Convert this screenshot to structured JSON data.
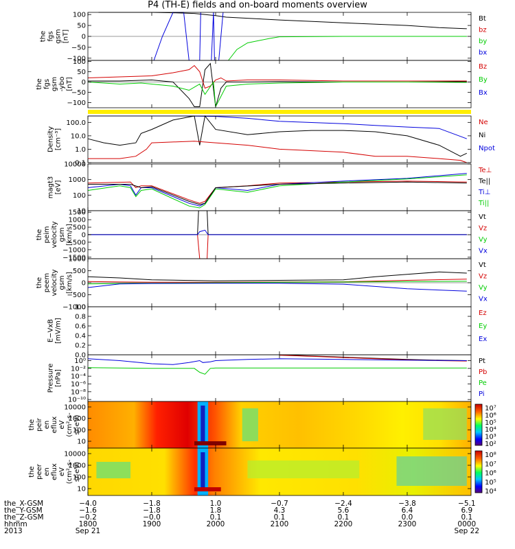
{
  "title": "P4 (TH-E) fields and on-board moments overview",
  "chart_data": [
    {
      "type": "line",
      "ylabel": [
        "the",
        "fgs",
        "gsm",
        "[nT]"
      ],
      "ylim": [
        -110,
        110
      ],
      "yticks": [
        "100",
        "50",
        "0",
        "−50",
        "−100"
      ],
      "ytick_values": [
        100,
        50,
        0,
        -50,
        -100
      ],
      "legend": [
        {
          "label": "Bt",
          "color": "#000000"
        },
        {
          "label": "bz",
          "color": "#d40000"
        },
        {
          "label": "by",
          "color": "#00cc00"
        },
        {
          "label": "bx",
          "color": "#0000dd"
        }
      ],
      "series": [
        {
          "color": "#000000",
          "x": [
            1810,
            1830,
            1840,
            1845,
            1850,
            1855,
            1900,
            1920,
            1940,
            2000,
            2010,
            2100,
            2200,
            2300,
            2330,
            2356
          ],
          "y": [
            110,
            110,
            110,
            110,
            110,
            110,
            110,
            108,
            105,
            95,
            88,
            75,
            62,
            50,
            40,
            35
          ]
        },
        {
          "color": "#00cc00",
          "x": [
            2012,
            2020,
            2030,
            2050,
            2100,
            2200,
            2300,
            2356
          ],
          "y": [
            -110,
            -60,
            -30,
            -10,
            -2,
            0,
            0,
            0
          ]
        },
        {
          "color": "#0000dd",
          "x": [
            1902,
            1910,
            1920,
            1930,
            1935,
            1945,
            1946
          ],
          "y": [
            -110,
            0,
            110,
            110,
            -110,
            -110,
            110
          ]
        },
        {
          "color": "#0000dd",
          "x": [
            1956,
            1958,
            1959,
            2003,
            2007
          ],
          "y": [
            -110,
            110,
            -110,
            -110,
            110
          ]
        }
      ]
    },
    {
      "type": "line",
      "ylabel": [
        "the",
        "fgs",
        "gsm",
        "-ybo",
        "[nT]"
      ],
      "ylim": [
        -125,
        105
      ],
      "yticks": [
        "100",
        "50",
        "0",
        "−50",
        "−100"
      ],
      "ytick_values": [
        100,
        50,
        0,
        -50,
        -100
      ],
      "legend": [
        {
          "label": "Bz",
          "color": "#d40000"
        },
        {
          "label": "By",
          "color": "#00cc00"
        },
        {
          "label": "Bx",
          "color": "#0000dd"
        }
      ],
      "series": [
        {
          "color": "#000000",
          "x": [
            1800,
            1830,
            1900,
            1920,
            1935,
            1940,
            1945,
            1950,
            1955,
            2000,
            2005,
            2010,
            2030,
            2100,
            2200,
            2300,
            2356
          ],
          "y": [
            5,
            5,
            10,
            0,
            -80,
            -120,
            -120,
            60,
            90,
            -120,
            -30,
            0,
            0,
            2,
            0,
            0,
            2
          ]
        },
        {
          "color": "#d40000",
          "x": [
            1800,
            1830,
            1900,
            1920,
            1935,
            1940,
            1945,
            1950,
            1955,
            2000,
            2005,
            2010,
            2030,
            2100,
            2200,
            2300,
            2356
          ],
          "y": [
            20,
            25,
            30,
            45,
            60,
            80,
            50,
            -30,
            -20,
            10,
            20,
            5,
            10,
            10,
            5,
            5,
            5
          ]
        },
        {
          "color": "#00cc00",
          "x": [
            1800,
            1830,
            1850,
            1900,
            1920,
            1935,
            1945,
            1950,
            1958,
            2000,
            2010,
            2030,
            2100,
            2200,
            2300,
            2356
          ],
          "y": [
            0,
            -10,
            -5,
            -10,
            -20,
            -40,
            -10,
            -60,
            0,
            -120,
            -20,
            -10,
            -5,
            0,
            0,
            -2
          ]
        }
      ]
    },
    {
      "type": "line",
      "ylabel": [
        "Density",
        "[cm⁻³]"
      ],
      "ylim": [
        0.1,
        300
      ],
      "yscale": "log",
      "yticks": [
        "100.0",
        "10.0",
        "1.0",
        "0.1"
      ],
      "ytick_values": [
        100,
        10,
        1,
        0.1
      ],
      "legend": [
        {
          "label": "Ne",
          "color": "#d40000"
        },
        {
          "label": "Ni",
          "color": "#000000"
        },
        {
          "label": "Npot",
          "color": "#0000dd"
        }
      ],
      "series": [
        {
          "color": "#0000dd",
          "x": [
            1800,
            1830,
            1900,
            1930,
            2000,
            2030,
            2100,
            2200,
            2230,
            2300,
            2330,
            2356
          ],
          "y": [
            300,
            300,
            300,
            300,
            280,
            200,
            120,
            80,
            60,
            45,
            35,
            6
          ]
        },
        {
          "color": "#000000",
          "x": [
            1800,
            1815,
            1830,
            1845,
            1850,
            1900,
            1920,
            1940,
            1945,
            1950,
            2000,
            2030,
            2100,
            2130,
            2200,
            2230,
            2300,
            2330,
            2350,
            2356
          ],
          "y": [
            6,
            3,
            2,
            3,
            15,
            30,
            150,
            300,
            2,
            300,
            30,
            12,
            20,
            25,
            25,
            20,
            10,
            2,
            0.3,
            0.5
          ]
        },
        {
          "color": "#d40000",
          "x": [
            1800,
            1830,
            1845,
            1855,
            1900,
            1940,
            2000,
            2030,
            2100,
            2200,
            2230,
            2300,
            2330,
            2350,
            2356
          ],
          "y": [
            0.2,
            0.2,
            0.3,
            1,
            3,
            4,
            3,
            2,
            1,
            0.6,
            0.3,
            0.3,
            0.2,
            0.15,
            0.1
          ]
        }
      ]
    },
    {
      "type": "line",
      "ylabel": [
        "magt3",
        "[eV]"
      ],
      "ylim": [
        10,
        10000
      ],
      "yscale": "log",
      "yticks": [
        "10000",
        "1000",
        "100",
        "10"
      ],
      "ytick_values": [
        10000,
        1000,
        100,
        10
      ],
      "legend": [
        {
          "label": "Te⊥",
          "color": "#d40000"
        },
        {
          "label": "Te||",
          "color": "#000000"
        },
        {
          "label": "Ti⊥",
          "color": "#0000dd"
        },
        {
          "label": "Ti||",
          "color": "#00cc00"
        }
      ],
      "series": [
        {
          "color": "#d40000",
          "x": [
            1800,
            1840,
            1845,
            1850,
            1900,
            1935,
            1945,
            1950,
            2000,
            2030,
            2100,
            2200,
            2300,
            2356
          ],
          "y": [
            600,
            700,
            300,
            400,
            400,
            50,
            30,
            40,
            300,
            400,
            600,
            700,
            800,
            700
          ]
        },
        {
          "color": "#0000dd",
          "x": [
            1800,
            1830,
            1840,
            1845,
            1850,
            1900,
            1935,
            1945,
            1950,
            2000,
            2030,
            2100,
            2200,
            2300,
            2356
          ],
          "y": [
            300,
            500,
            400,
            100,
            300,
            300,
            30,
            20,
            30,
            300,
            200,
            500,
            800,
            1200,
            2500
          ]
        },
        {
          "color": "#00cc00",
          "x": [
            1800,
            1830,
            1840,
            1845,
            1850,
            1900,
            1935,
            1945,
            1950,
            2000,
            2030,
            2100,
            2200,
            2300,
            2356
          ],
          "y": [
            200,
            400,
            300,
            80,
            200,
            250,
            20,
            15,
            25,
            250,
            150,
            400,
            700,
            1100,
            2000
          ]
        },
        {
          "color": "#000000",
          "x": [
            1800,
            1840,
            1850,
            1900,
            1935,
            1945,
            1950,
            2000,
            2100,
            2200,
            2300,
            2356
          ],
          "y": [
            500,
            500,
            300,
            350,
            40,
            25,
            30,
            300,
            500,
            600,
            700,
            600
          ]
        }
      ]
    },
    {
      "type": "line",
      "ylabel": [
        "the",
        "peim",
        "velocity",
        "gsm",
        "[km/s]"
      ],
      "ylim": [
        -1600,
        1600
      ],
      "yticks": [
        "1500",
        "1000",
        "500",
        "0",
        "−500",
        "−1000",
        "−1500"
      ],
      "ytick_values": [
        1500,
        1000,
        500,
        0,
        -500,
        -1000,
        -1500
      ],
      "legend": [
        {
          "label": "Vt",
          "color": "#000000"
        },
        {
          "label": "Vz",
          "color": "#d40000"
        },
        {
          "label": "Vy",
          "color": "#00cc00"
        },
        {
          "label": "Vx",
          "color": "#0000dd"
        }
      ],
      "series": [
        {
          "color": "#000000",
          "x": [
            1800,
            1943,
            1944,
            1945,
            1952,
            1953,
            2356
          ],
          "y": [
            10,
            10,
            1600,
            1600,
            1600,
            10,
            10
          ]
        },
        {
          "color": "#d40000",
          "x": [
            1800,
            1943,
            1945,
            1952,
            1953,
            2356
          ],
          "y": [
            0,
            0,
            -1600,
            -1600,
            0,
            0
          ]
        },
        {
          "color": "#0000dd",
          "x": [
            1800,
            1943,
            1945,
            1950,
            1953,
            2356
          ],
          "y": [
            0,
            0,
            200,
            300,
            0,
            0
          ]
        }
      ]
    },
    {
      "type": "line",
      "ylabel": [
        "the",
        "peem",
        "velocity",
        "gsm",
        "[km/s]"
      ],
      "ylim": [
        -1000,
        1000
      ],
      "yticks": [
        "1000",
        "500",
        "0",
        "−500",
        "−1000"
      ],
      "ytick_values": [
        1000,
        500,
        0,
        -500,
        -1000
      ],
      "legend": [
        {
          "label": "Vt",
          "color": "#000000"
        },
        {
          "label": "Vz",
          "color": "#d40000"
        },
        {
          "label": "Vy",
          "color": "#00cc00"
        },
        {
          "label": "Vx",
          "color": "#0000dd"
        }
      ],
      "series": [
        {
          "color": "#000000",
          "x": [
            1800,
            1830,
            1900,
            1930,
            2000,
            2100,
            2200,
            2230,
            2300,
            2330,
            2356
          ],
          "y": [
            250,
            200,
            120,
            100,
            80,
            100,
            120,
            250,
            350,
            450,
            400
          ]
        },
        {
          "color": "#d40000",
          "x": [
            1800,
            1830,
            1900,
            2000,
            2100,
            2200,
            2300,
            2356
          ],
          "y": [
            50,
            30,
            20,
            20,
            30,
            40,
            100,
            150
          ]
        },
        {
          "color": "#00cc00",
          "x": [
            1800,
            1830,
            1900,
            2000,
            2100,
            2200,
            2300,
            2356
          ],
          "y": [
            -50,
            -30,
            -20,
            0,
            20,
            30,
            50,
            60
          ]
        },
        {
          "color": "#0000dd",
          "x": [
            1800,
            1830,
            1900,
            2000,
            2100,
            2200,
            2300,
            2356
          ],
          "y": [
            -200,
            -50,
            -30,
            -20,
            -20,
            -60,
            -250,
            -350
          ]
        }
      ]
    },
    {
      "type": "line",
      "ylabel": [
        "E−VxB",
        "[mV/m]"
      ],
      "ylim": [
        0,
        1
      ],
      "yticks": [
        "1.0",
        "0.8",
        "0.6",
        "0.4",
        "0.2",
        "0.0"
      ],
      "ytick_values": [
        1,
        0.8,
        0.6,
        0.4,
        0.2,
        0
      ],
      "legend": [
        {
          "label": "Ez",
          "color": "#d40000"
        },
        {
          "label": "Ey",
          "color": "#00cc00"
        },
        {
          "label": "Ex",
          "color": "#0000dd"
        }
      ],
      "series": []
    },
    {
      "type": "line",
      "ylabel": [
        "Pressure",
        "[nPa]"
      ],
      "ylim": [
        -10.5,
        1.5
      ],
      "yscale": "log",
      "yticks": [
        "10⁰",
        "10⁻²",
        "10⁻⁴",
        "10⁻⁶",
        "10⁻⁸",
        "10⁻¹⁰"
      ],
      "ytick_values": [
        0,
        -2,
        -4,
        -6,
        -8,
        -10
      ],
      "legend": [
        {
          "label": "Pt",
          "color": "#000000"
        },
        {
          "label": "Pb",
          "color": "#d40000"
        },
        {
          "label": "Pe",
          "color": "#00cc00"
        },
        {
          "label": "Pi",
          "color": "#0000dd"
        }
      ],
      "series": [
        {
          "color": "#000000",
          "x": [
            2100,
            2130,
            2200,
            2230,
            2300,
            2330,
            2356
          ],
          "y": [
            1.5,
            1.2,
            0.9,
            0.6,
            0.3,
            0.1,
            0
          ]
        },
        {
          "color": "#d40000",
          "x": [
            2100,
            2130,
            2200,
            2230,
            2300,
            2330,
            2356
          ],
          "y": [
            1.4,
            1.1,
            0.8,
            0.5,
            0.2,
            0,
            -0.1
          ]
        },
        {
          "color": "#0000dd",
          "x": [
            1800,
            1830,
            1900,
            1920,
            1935,
            1945,
            1948,
            1955,
            2000,
            2030,
            2100,
            2200,
            2300,
            2356
          ],
          "y": [
            0.5,
            0,
            -0.8,
            -1,
            -0.5,
            0,
            -0.5,
            -0.3,
            0,
            0.3,
            0.5,
            0.3,
            0.1,
            0
          ]
        },
        {
          "color": "#00cc00",
          "x": [
            1800,
            1830,
            1900,
            1920,
            1940,
            1945,
            1950,
            1955,
            2000,
            2100,
            2200,
            2300,
            2356
          ],
          "y": [
            -1.8,
            -1.9,
            -2,
            -2,
            -2,
            -3,
            -3.5,
            -2,
            -1.9,
            -1.9,
            -1.9,
            -1.9,
            -1.9
          ]
        }
      ]
    },
    {
      "type": "heatmap",
      "ylabel": [
        "the",
        "peir",
        "en",
        "eflux",
        "eV",
        "(cm²-s-",
        "sr-eV)"
      ],
      "yscale": "log",
      "yticks": [
        "10000",
        "1000",
        "100",
        "10"
      ],
      "colorbar_ticks": [
        "10⁷",
        "10⁶",
        "10⁵",
        "10⁴",
        "10³",
        "10²"
      ]
    },
    {
      "type": "heatmap",
      "ylabel": [
        "the",
        "peer",
        "en",
        "eflux",
        "eV",
        "(cm²-s-",
        "sr-eV)"
      ],
      "yscale": "log",
      "yticks": [
        "10000",
        "1000",
        "100",
        "10"
      ],
      "colorbar_ticks": [
        "10⁸",
        "10⁷",
        "10⁶",
        "10⁵",
        "10⁴"
      ]
    }
  ],
  "footer": {
    "rows": [
      {
        "label": "the_X-GSM",
        "values": [
          "−4.0",
          "−1.8",
          "1.0",
          "−0.7",
          "−2.4",
          "−3.8",
          "−5.1"
        ]
      },
      {
        "label": "the_Y-GSM",
        "values": [
          "−1.6",
          "−1.8",
          "1.8",
          "4.3",
          "5.6",
          "6.4",
          "6.9"
        ]
      },
      {
        "label": "the_Z-GSM",
        "values": [
          "−0.2",
          "−0.0",
          "0.1",
          "0.1",
          "0.1",
          "0.0",
          "0.1"
        ]
      },
      {
        "label": "hhmm",
        "values": [
          "1800",
          "1900",
          "2000",
          "2100",
          "2200",
          "2300",
          "0000"
        ]
      }
    ],
    "year": "2013",
    "start_date": "Sep 21",
    "end_date": "Sep 22"
  }
}
